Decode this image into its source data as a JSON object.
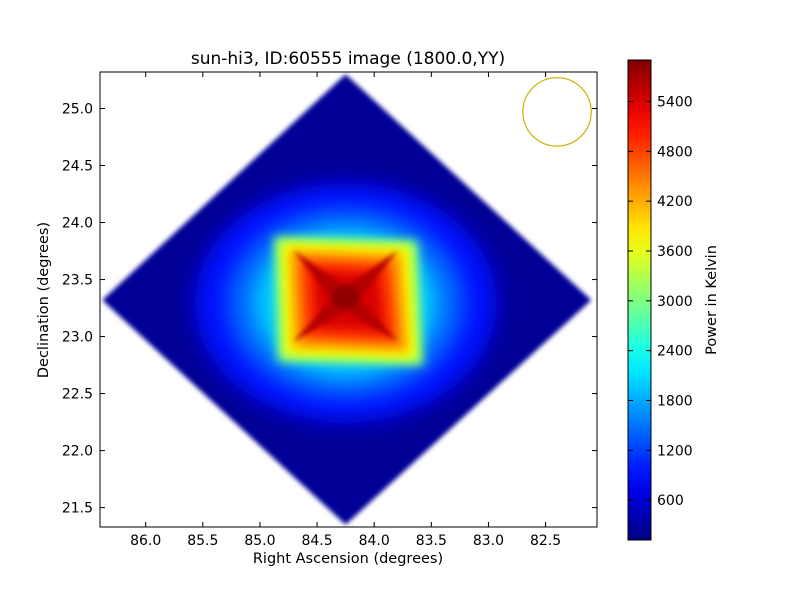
{
  "chart_data": {
    "type": "heatmap",
    "title": "sun-hi3, ID:60555 image (1800.0,YY)",
    "xlabel": "Right Ascension (degrees)",
    "ylabel": "Declination (degrees)",
    "xlim": [
      86.4,
      82.05
    ],
    "ylim": [
      21.33,
      25.32
    ],
    "x_inverted": true,
    "xticks": [
      86.0,
      85.5,
      85.0,
      84.5,
      84.0,
      83.5,
      83.0,
      82.5
    ],
    "xtick_labels": [
      "86.0",
      "85.5",
      "85.0",
      "84.5",
      "84.0",
      "83.5",
      "83.0",
      "82.5"
    ],
    "yticks": [
      21.5,
      22.0,
      22.5,
      23.0,
      23.5,
      24.0,
      24.5,
      25.0
    ],
    "ytick_labels": [
      "21.5",
      "22.0",
      "22.5",
      "23.0",
      "23.5",
      "24.0",
      "24.5",
      "25.0"
    ],
    "colormap": "jet",
    "colorbar": {
      "label": "Power in Kelvin",
      "min": 120,
      "max": 5900,
      "ticks": [
        600,
        1200,
        1800,
        2400,
        3000,
        3600,
        4200,
        4800,
        5400
      ],
      "tick_labels": [
        "600",
        "1200",
        "1800",
        "2400",
        "3000",
        "3600",
        "4200",
        "4800",
        "5400"
      ]
    },
    "footprint": {
      "shape": "diamond",
      "center_ra": 84.25,
      "center_dec": 23.32,
      "vertices": [
        [
          84.25,
          25.3
        ],
        [
          86.38,
          23.32
        ],
        [
          84.25,
          21.35
        ],
        [
          82.1,
          23.32
        ]
      ],
      "background_value": 250
    },
    "peak": {
      "ra": 84.25,
      "dec": 23.33,
      "value": 5800,
      "plateau_ra_range": [
        84.85,
        83.65
      ],
      "plateau_dec_range": [
        22.75,
        23.8
      ]
    },
    "beam_circle": {
      "ra": 82.4,
      "dec": 24.97,
      "radius_deg": 0.3,
      "color": "#c8b400"
    },
    "grid": false
  }
}
